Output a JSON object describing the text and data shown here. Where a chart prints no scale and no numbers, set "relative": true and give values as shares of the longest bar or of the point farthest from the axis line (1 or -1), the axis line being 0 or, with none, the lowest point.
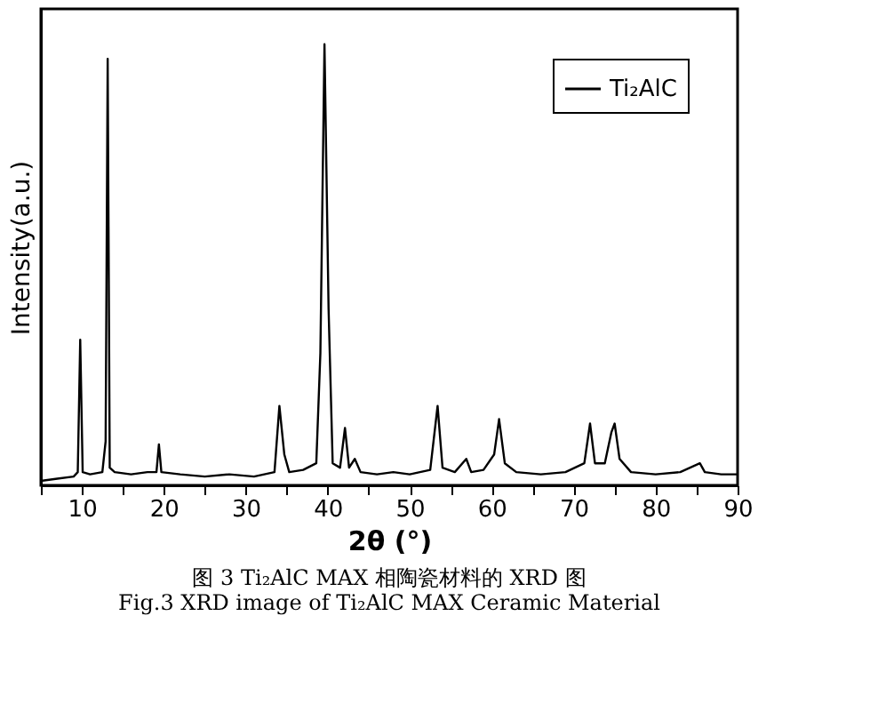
{
  "chart_data": {
    "type": "line",
    "relative": true,
    "xlabel": "2θ (°)",
    "ylabel": "Intensity(a.u.)",
    "annotations": [
      "图 3 Ti₂AlC MAX 相陶瓷材料的 XRD  图",
      "Fig.3 XRD image of Ti₂AlC MAX Ceramic Material"
    ],
    "xlim": [
      5,
      90
    ],
    "xticks": [
      {
        "value": 5,
        "label": null
      },
      10,
      {
        "value": 15,
        "label": null
      },
      20,
      {
        "value": 25,
        "label": null
      },
      30,
      {
        "value": 35,
        "label": null
      },
      40,
      {
        "value": 45,
        "label": null
      },
      50,
      {
        "value": 55,
        "label": null
      },
      60,
      {
        "value": 65,
        "label": null
      },
      70,
      {
        "value": 75,
        "label": null
      },
      80,
      {
        "value": 85,
        "label": null
      },
      90
    ],
    "legend": "top right",
    "grid": false,
    "marker": "none",
    "line_style": "solid",
    "series": [
      {
        "name": "Ti₂AlC",
        "color": "#000000",
        "x": [
          5,
          7,
          9,
          9.5,
          9.8,
          10.1,
          11,
          12.5,
          12.9,
          13.15,
          13.4,
          14,
          16,
          18,
          19.1,
          19.4,
          19.7,
          22,
          25,
          28,
          31,
          33.5,
          34.1,
          34.7,
          35.3,
          37,
          38.6,
          39.1,
          39.6,
          40.1,
          40.6,
          41.5,
          42.1,
          42.6,
          43.3,
          44,
          46,
          48,
          50,
          52.5,
          53.4,
          54,
          55.5,
          56.9,
          57.5,
          59,
          60.3,
          60.9,
          61.6,
          63,
          66,
          69,
          71.3,
          72,
          72.6,
          73.8,
          74.6,
          75.0,
          75.6,
          77,
          80,
          83,
          85.4,
          86,
          88,
          90
        ],
        "values": [
          0.01,
          0.015,
          0.02,
          0.03,
          0.33,
          0.03,
          0.025,
          0.03,
          0.1,
          0.967,
          0.04,
          0.03,
          0.025,
          0.03,
          0.03,
          0.093,
          0.03,
          0.025,
          0.02,
          0.025,
          0.02,
          0.03,
          0.18,
          0.07,
          0.03,
          0.035,
          0.05,
          0.3,
          1,
          0.4,
          0.05,
          0.04,
          0.13,
          0.04,
          0.06,
          0.03,
          0.025,
          0.03,
          0.025,
          0.035,
          0.18,
          0.04,
          0.03,
          0.06,
          0.03,
          0.035,
          0.07,
          0.15,
          0.05,
          0.03,
          0.025,
          0.03,
          0.05,
          0.14,
          0.05,
          0.05,
          0.12,
          0.14,
          0.06,
          0.03,
          0.025,
          0.03,
          0.05,
          0.03,
          0.025,
          0.025
        ]
      }
    ]
  }
}
